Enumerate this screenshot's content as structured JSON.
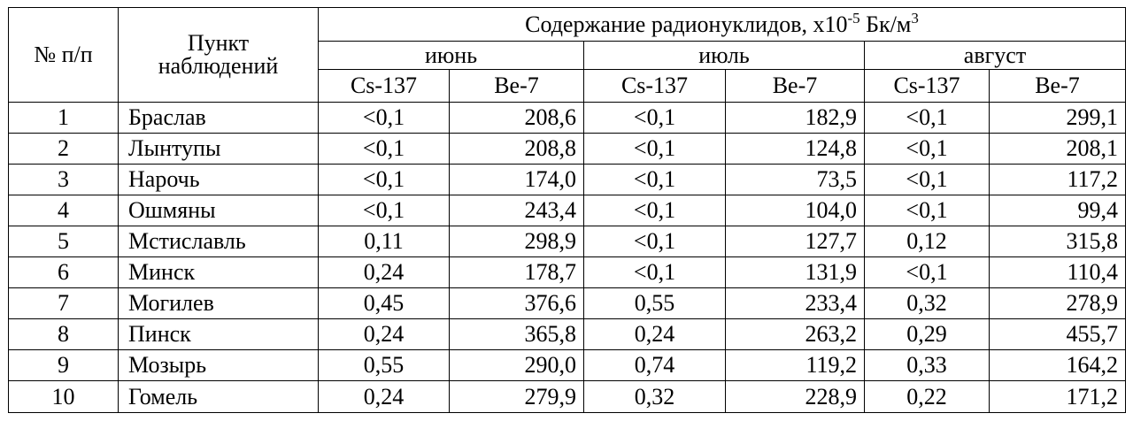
{
  "header": {
    "number_label": "№ п/п",
    "point_label_line1": "Пункт",
    "point_label_line2": "наблюдений",
    "content_title_prefix": "Содержание радионуклидов, х10",
    "content_title_exp": "-5",
    "content_title_unit": " Бк/м",
    "content_title_unit_exp": "3",
    "months": [
      "июнь",
      "июль",
      "август"
    ],
    "isotopes": [
      "Cs-137",
      "Be-7",
      "Cs-137",
      "Be-7",
      "Cs-137",
      "Be-7"
    ]
  },
  "rows": [
    {
      "n": "1",
      "point": "Браслав",
      "cells": [
        "<0,1",
        "208,6",
        "<0,1",
        "182,9",
        "<0,1",
        "299,1"
      ]
    },
    {
      "n": "2",
      "point": "Лынтупы",
      "cells": [
        "<0,1",
        "208,8",
        "<0,1",
        "124,8",
        "<0,1",
        "208,1"
      ]
    },
    {
      "n": "3",
      "point": "Нарочь",
      "cells": [
        "<0,1",
        "174,0",
        "<0,1",
        "73,5",
        "<0,1",
        "117,2"
      ]
    },
    {
      "n": "4",
      "point": "Ошмяны",
      "cells": [
        "<0,1",
        "243,4",
        "<0,1",
        "104,0",
        "<0,1",
        "99,4"
      ]
    },
    {
      "n": "5",
      "point": "Мстиславль",
      "cells": [
        "0,11",
        "298,9",
        "<0,1",
        "127,7",
        "0,12",
        "315,8"
      ]
    },
    {
      "n": "6",
      "point": "Минск",
      "cells": [
        "0,24",
        "178,7",
        "<0,1",
        "131,9",
        "<0,1",
        "110,4"
      ]
    },
    {
      "n": "7",
      "point": "Могилев",
      "cells": [
        "0,45",
        "376,6",
        "0,55",
        "233,4",
        "0,32",
        "278,9"
      ]
    },
    {
      "n": "8",
      "point": "Пинск",
      "cells": [
        "0,24",
        "365,8",
        "0,24",
        "263,2",
        "0,29",
        "455,7"
      ]
    },
    {
      "n": "9",
      "point": "Мозырь",
      "cells": [
        "0,55",
        "290,0",
        "0,74",
        "119,2",
        "0,33",
        "164,2"
      ]
    },
    {
      "n": "10",
      "point": "Гомель",
      "cells": [
        "0,24",
        "279,9",
        "0,32",
        "228,9",
        "0,22",
        "171,2"
      ]
    }
  ]
}
